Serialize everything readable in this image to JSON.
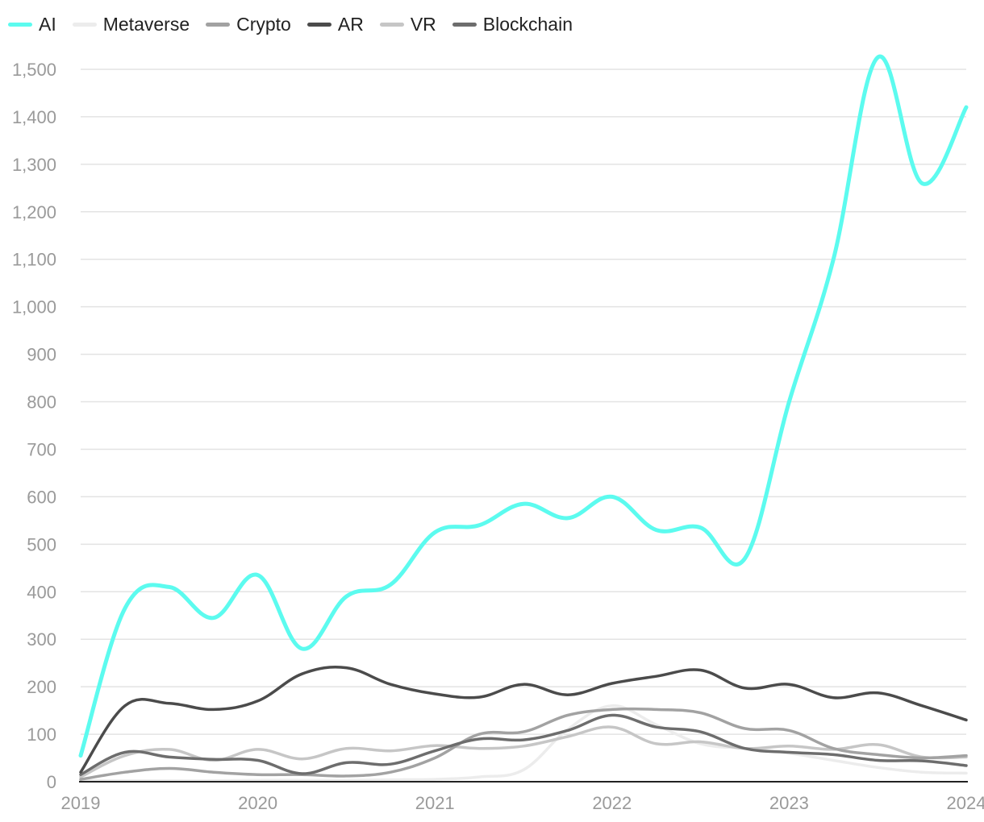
{
  "chart_data": {
    "type": "line",
    "title": "",
    "xlabel": "",
    "ylabel": "",
    "x_ticks": [
      "2019",
      "2020",
      "2021",
      "2022",
      "2023",
      "2024"
    ],
    "x_range": [
      2019,
      2024
    ],
    "y_ticks": [
      "0",
      "100",
      "200",
      "300",
      "400",
      "500",
      "600",
      "700",
      "800",
      "900",
      "1,000",
      "1,100",
      "1,200",
      "1,300",
      "1,400",
      "1,500"
    ],
    "ylim": [
      0,
      1500
    ],
    "grid": true,
    "legend_position": "top-left",
    "x": [
      2019,
      2019.25,
      2019.5,
      2019.75,
      2020,
      2020.25,
      2020.5,
      2020.75,
      2021,
      2021.25,
      2021.5,
      2021.75,
      2022,
      2022.25,
      2022.5,
      2022.75,
      2023,
      2023.25,
      2023.5,
      2023.75,
      2024
    ],
    "series": [
      {
        "name": "AI",
        "color": "#5cfbef",
        "values": [
          55,
          365,
          410,
          345,
          435,
          280,
          390,
          415,
          525,
          540,
          585,
          555,
          600,
          530,
          535,
          470,
          800,
          1100,
          1525,
          1260,
          1420
        ]
      },
      {
        "name": "Metaverse",
        "color": "#ececec",
        "values": [
          2,
          2,
          2,
          2,
          3,
          3,
          3,
          4,
          5,
          10,
          25,
          110,
          160,
          120,
          80,
          70,
          60,
          45,
          30,
          20,
          18
        ]
      },
      {
        "name": "Crypto",
        "color": "#a2a2a2",
        "values": [
          5,
          20,
          28,
          20,
          15,
          15,
          12,
          20,
          50,
          100,
          105,
          140,
          152,
          152,
          145,
          112,
          108,
          70,
          57,
          50,
          55
        ]
      },
      {
        "name": "AR",
        "color": "#4b4b4b",
        "values": [
          20,
          160,
          165,
          152,
          170,
          227,
          240,
          205,
          185,
          178,
          205,
          183,
          207,
          222,
          235,
          197,
          205,
          177,
          187,
          160,
          130
        ]
      },
      {
        "name": "VR",
        "color": "#c6c6c6",
        "values": [
          10,
          55,
          68,
          45,
          68,
          48,
          70,
          65,
          76,
          70,
          75,
          95,
          115,
          80,
          84,
          70,
          75,
          68,
          78,
          52,
          52
        ]
      },
      {
        "name": "Blockchain",
        "color": "#6d6d6d",
        "values": [
          15,
          62,
          52,
          47,
          45,
          17,
          40,
          37,
          65,
          90,
          88,
          108,
          140,
          115,
          105,
          70,
          62,
          57,
          45,
          44,
          34
        ]
      }
    ]
  }
}
